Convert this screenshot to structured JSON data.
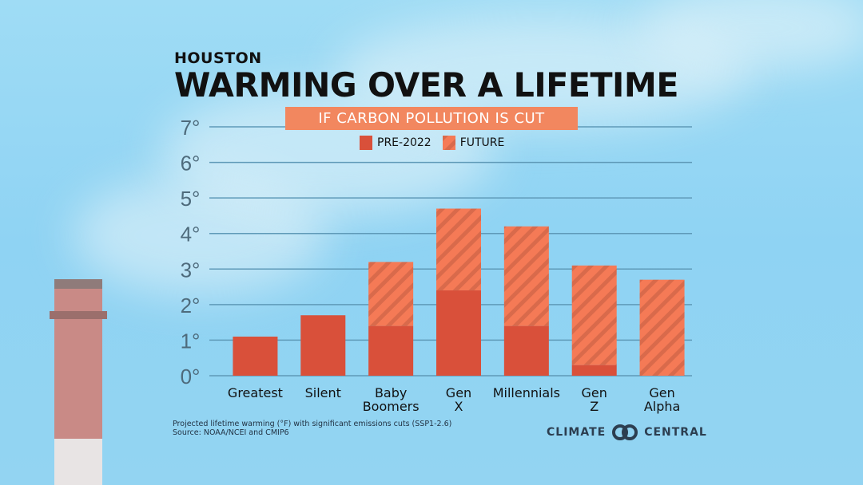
{
  "header": {
    "city": "HOUSTON",
    "title": "WARMING OVER A LIFETIME",
    "subtitle": "IF CARBON POLLUTION IS CUT"
  },
  "colors": {
    "pre": "#d9503a",
    "future": "#f57a56",
    "stripe": "#d96a4b",
    "subtitle_bg": "#f2875f"
  },
  "chart_data": {
    "type": "bar",
    "stacked": true,
    "categories": [
      "Greatest",
      "Silent",
      "Baby Boomers",
      "Gen X",
      "Millennials",
      "Gen Z",
      "Gen Alpha"
    ],
    "series": [
      {
        "name": "PRE-2022",
        "values": [
          1.1,
          1.7,
          1.4,
          2.4,
          1.4,
          0.3,
          0
        ]
      },
      {
        "name": "FUTURE",
        "values": [
          0,
          0,
          1.8,
          2.3,
          2.8,
          2.8,
          2.7
        ]
      }
    ],
    "yticks": [
      "0°",
      "1°",
      "2°",
      "3°",
      "4°",
      "5°",
      "6°",
      "7°"
    ],
    "ylim": [
      0,
      7
    ],
    "grid": true,
    "legend": "top"
  },
  "legend": {
    "pre": "PRE-2022",
    "future": "FUTURE"
  },
  "footer": {
    "note": "Projected lifetime warming (°F) with significant emissions cuts (SSP1-2.6)",
    "source": "Source: NOAA/NCEI and CMIP6"
  },
  "logo": {
    "left": "CLIMATE",
    "right": "CENTRAL"
  }
}
